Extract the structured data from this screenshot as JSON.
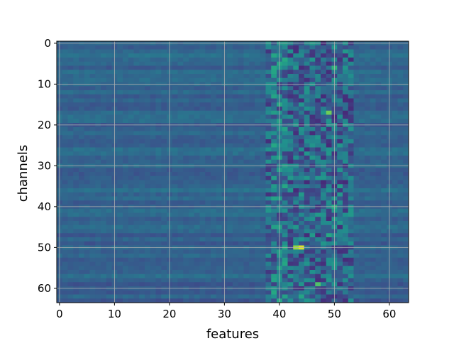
{
  "chart_data": {
    "type": "heatmap",
    "title": "",
    "xlabel": "features",
    "ylabel": "channels",
    "x_ticks": [
      0,
      10,
      20,
      30,
      40,
      50,
      60
    ],
    "y_ticks": [
      0,
      10,
      20,
      30,
      40,
      50,
      60
    ],
    "xlim": [
      -0.5,
      63.5
    ],
    "ylim": [
      63.5,
      -0.5
    ],
    "n_rows": 64,
    "n_cols": 64,
    "colormap": "viridis",
    "grid": true,
    "grid_color": "#b0b0b0",
    "hotspots": [
      {
        "row": 50,
        "col": 44,
        "value": 0.95
      },
      {
        "row": 50,
        "col": 43,
        "value": 0.85
      },
      {
        "row": 17,
        "col": 49,
        "value": 0.78
      },
      {
        "row": 59,
        "col": 47,
        "value": 0.72
      },
      {
        "row": 6,
        "col": 50,
        "value": 0.65
      },
      {
        "row": 4,
        "col": 41,
        "value": 0.6
      },
      {
        "row": 40,
        "col": 50,
        "value": 0.62
      },
      {
        "row": 47,
        "col": 49,
        "value": 0.6
      },
      {
        "row": 62,
        "col": 44,
        "value": 0.58
      },
      {
        "row": 35,
        "col": 51,
        "value": 0.55
      }
    ]
  }
}
